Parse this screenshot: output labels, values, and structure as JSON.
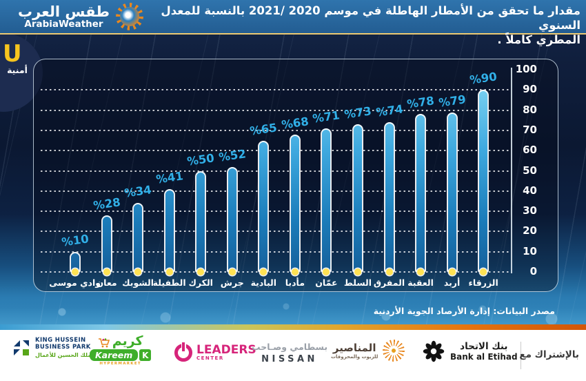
{
  "header": {
    "brand": {
      "name_ar": "طقس العرب",
      "name_en": "ArabiaWeather"
    },
    "title_line1": "مقدار ما تحقق من الأمطار الهاطلة في موسم 2020 /2021 بالنسبة للمعدل السنوي",
    "title_line2": "المطري كاملاً ."
  },
  "umniah_badge": {
    "letter": "U",
    "name_ar": "أمنية"
  },
  "chart_data": {
    "type": "bar",
    "direction": "rtl",
    "categories": [
      "وادي موسى",
      "معان",
      "الشوبك",
      "الطفيلة",
      "الكرك",
      "جرش",
      "البادية",
      "مأدبا",
      "عمّان",
      "السلط",
      "المفرق",
      "العقبة",
      "أربد",
      "الزرقاء"
    ],
    "values": [
      10,
      28,
      34,
      41,
      50,
      52,
      65,
      68,
      71,
      73,
      74,
      78,
      79,
      90
    ],
    "value_label_prefix": "%",
    "ylim": [
      0,
      100
    ],
    "ytick_step": 10,
    "yaxis_side": "right",
    "grid": "dotted-horizontal",
    "colors": {
      "bar_top": "#8adcf7",
      "bar_bottom": "#16619c",
      "bar_outline": "#ffffff",
      "value_label": "#31b0e8",
      "baseline_dot": "#ffe253",
      "tick_label": "#ffffff"
    }
  },
  "source_note": "مصدر البيانات: إدارة الأرصاد الجوية الأردنية",
  "footer": {
    "partnership_label": "بالإشتراك مع",
    "sponsors": {
      "khbp": {
        "line1": "KING HUSSEIN",
        "line2": "BUSINESS PARK",
        "name_ar": "مجمع الملك الحسين للأعمال"
      },
      "kareem": {
        "name_ar": "كريم",
        "name_en": "Kareem",
        "k_letter": "K",
        "subtitle": "HYPERMARKET"
      },
      "leaders": {
        "name": "LEADERS",
        "subtitle": "CENTER"
      },
      "nissan": {
        "dealer_ar": "بسطامي وصـاحب",
        "name": "NISSAN"
      },
      "manaseer": {
        "name_ar": "المناصير",
        "subtitle_ar": "للزيوت والمحروقات"
      },
      "etihad": {
        "name_ar": "بنك الاتحاد",
        "name_en": "Bank al Etihad"
      }
    }
  }
}
